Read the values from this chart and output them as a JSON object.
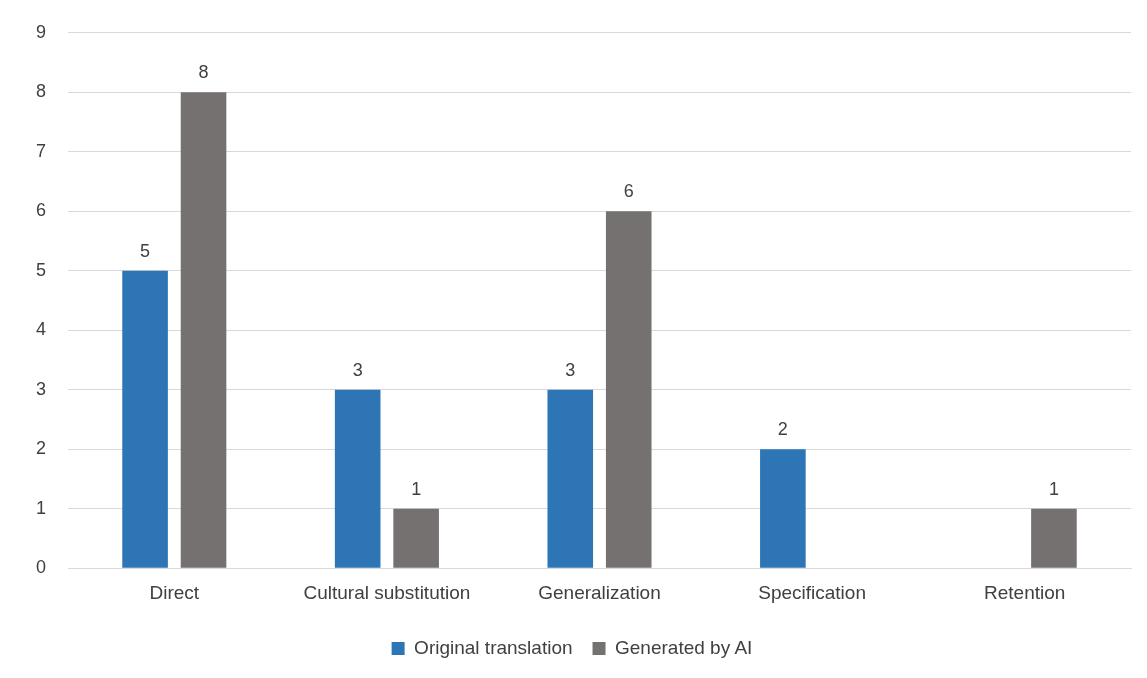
{
  "chart_data": {
    "type": "bar",
    "categories": [
      "Direct",
      "Cultural substitution",
      "Generalization",
      "Specification",
      "Retention"
    ],
    "series": [
      {
        "name": "Original translation",
        "color": "#2e75b6",
        "values": [
          5,
          3,
          3,
          2,
          null
        ]
      },
      {
        "name": "Generated by AI",
        "color": "#767171",
        "values": [
          8,
          1,
          6,
          null,
          1
        ]
      }
    ],
    "ylim": [
      0,
      9
    ],
    "yticks": [
      0,
      1,
      2,
      3,
      4,
      5,
      6,
      7,
      8,
      9
    ],
    "grid": "y",
    "legend": "bottom",
    "data_labels": true
  }
}
